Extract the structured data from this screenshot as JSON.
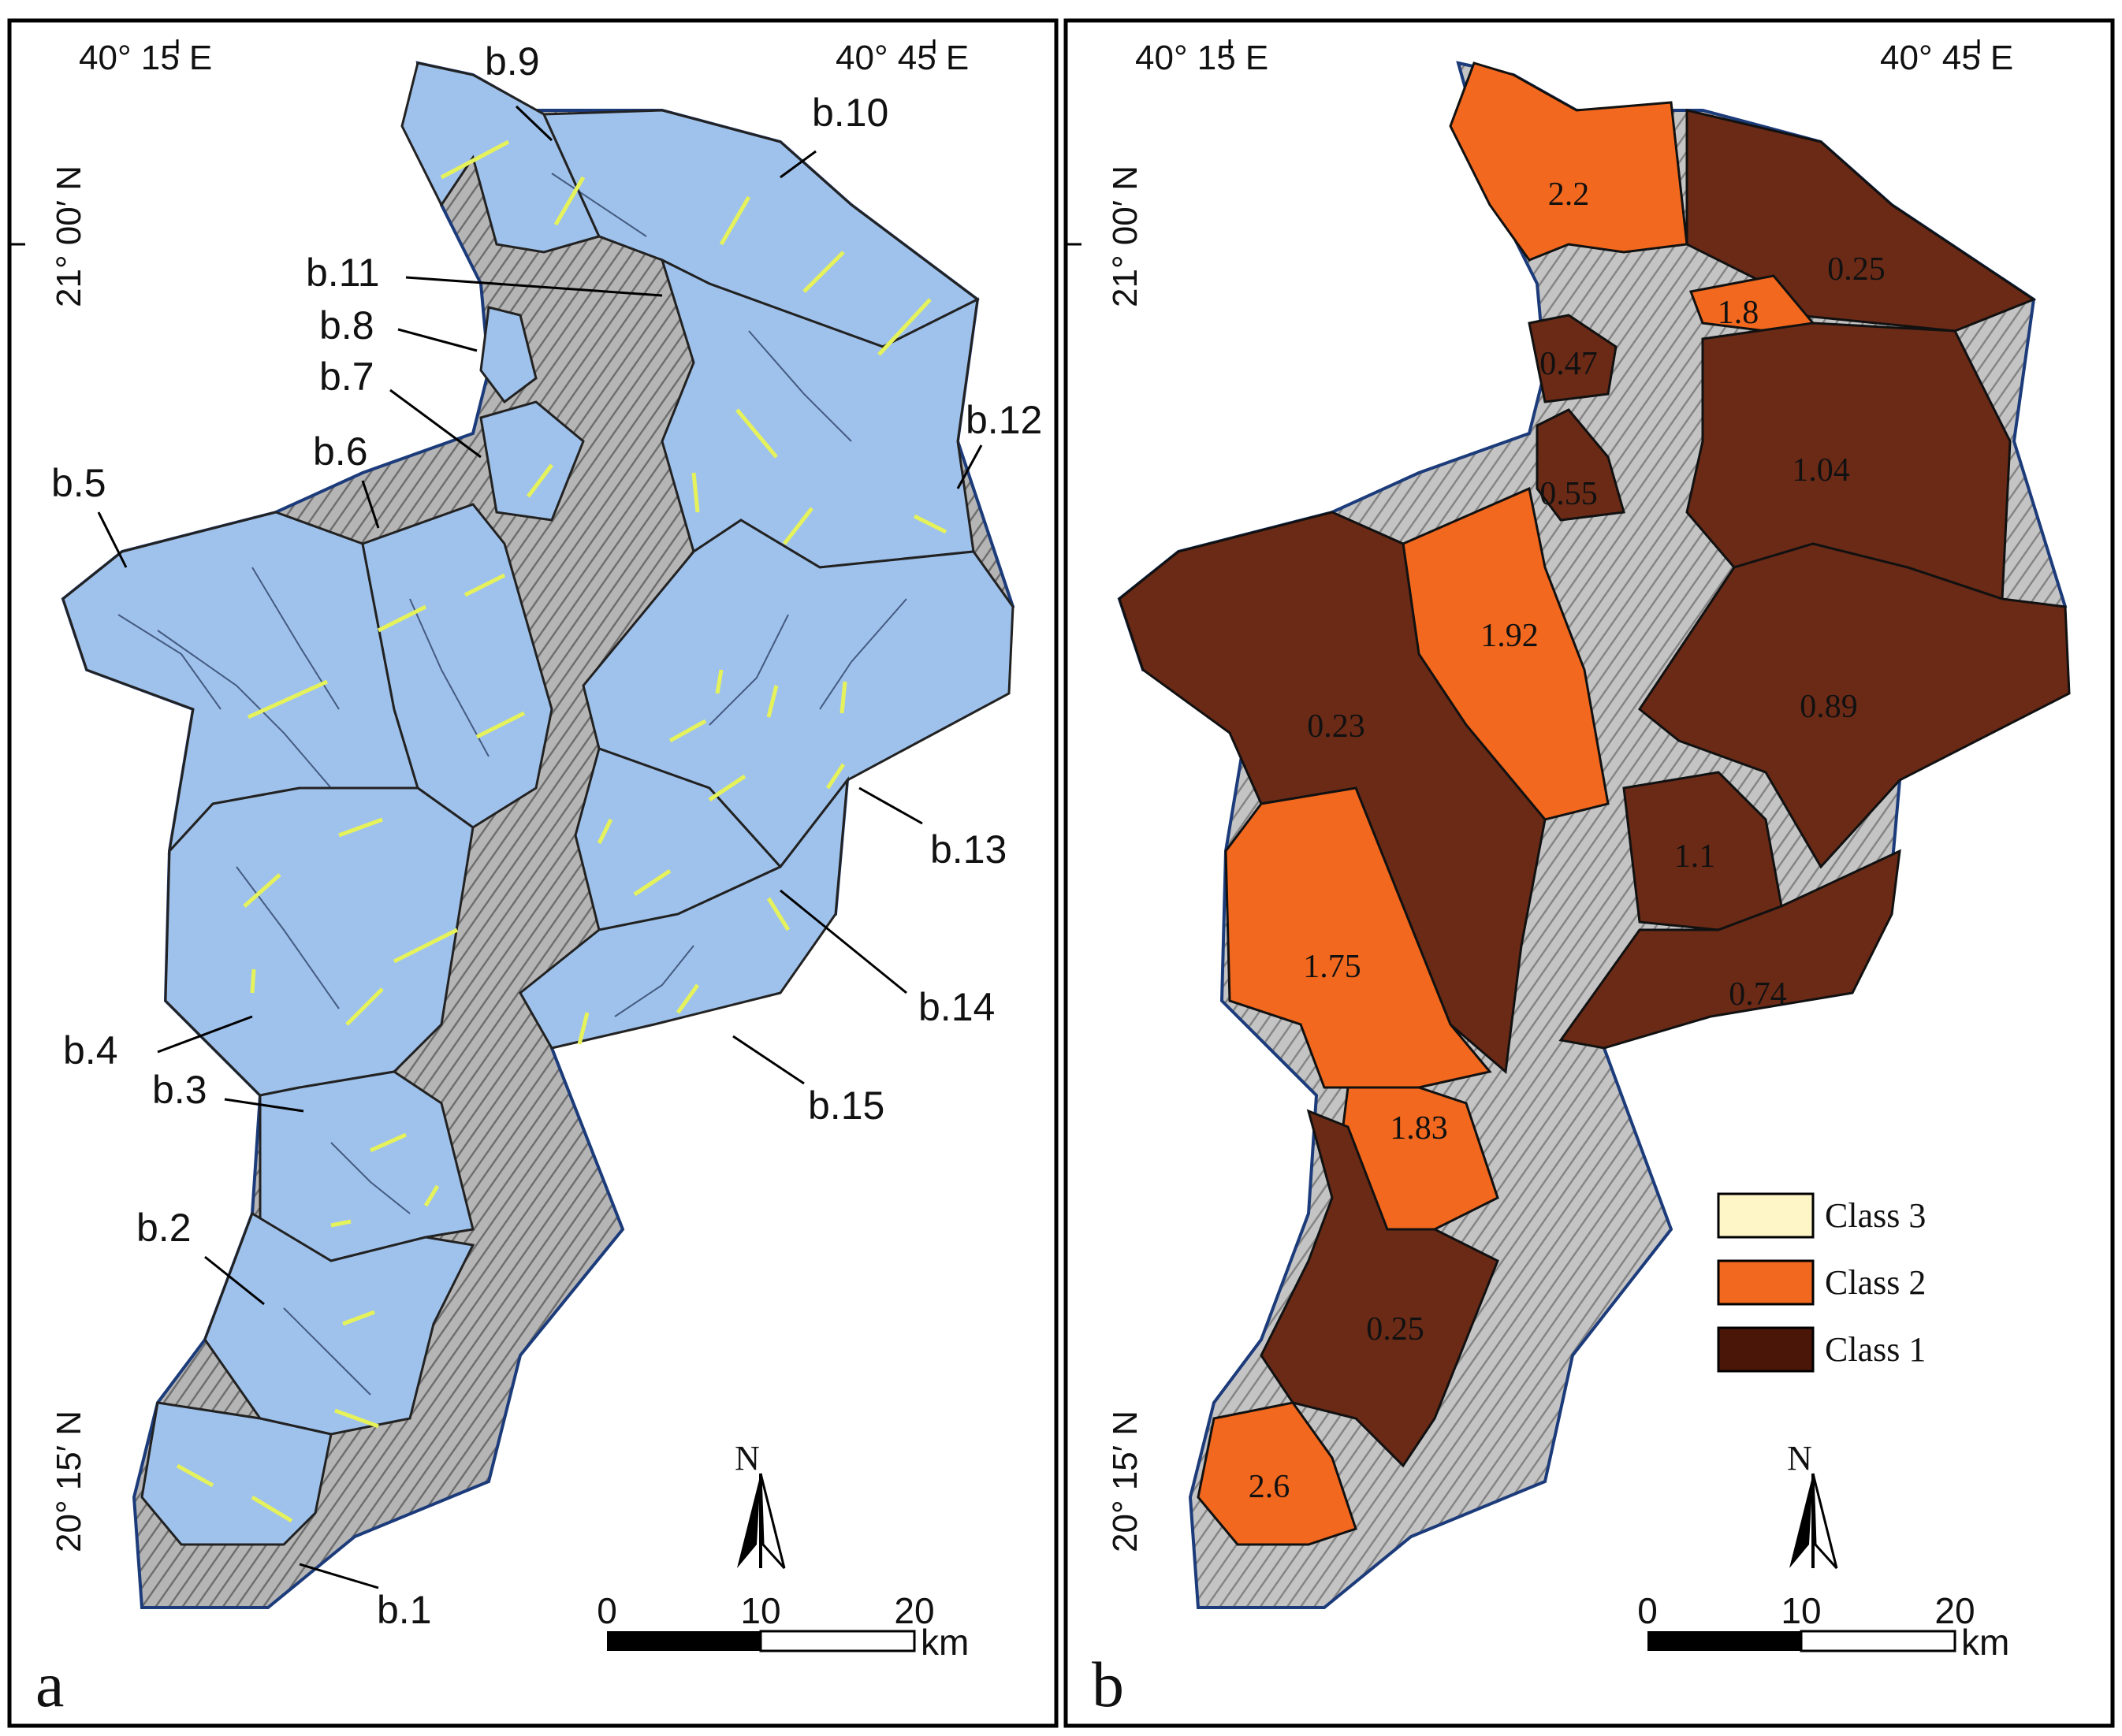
{
  "panels": [
    {
      "letter": "a",
      "lon_left": "40° 15 E",
      "lon_right": "40° 45 E",
      "lat_top": "21° 00′ N",
      "lat_bottom": "20° 15′ N",
      "basin_color": "#9fc2ec",
      "hill_color": "#9a9a9a",
      "lineament_color": "#e6f25a",
      "basin_labels": [
        "b.1",
        "b.2",
        "b.3",
        "b.4",
        "b.5",
        "b.6",
        "b.7",
        "b.8",
        "b.9",
        "b.10",
        "b.11",
        "b.12",
        "b.13",
        "b.14",
        "b.15"
      ]
    },
    {
      "letter": "b",
      "lon_left": "40° 15 E",
      "lon_right": "40° 45 E",
      "lat_top": "21° 00′ N",
      "lat_bottom": "20° 15′ N",
      "values": [
        "2.2",
        "1.8",
        "0.25",
        "0.47",
        "0.55",
        "1.04",
        "1.92",
        "0.23",
        "0.89",
        "1.1",
        "1.75",
        "0.74",
        "1.83",
        "0.25",
        "2.6"
      ],
      "legend": [
        {
          "label": "Class 3",
          "color": "#fff6c8"
        },
        {
          "label": "Class 2",
          "color": "#f2681e"
        },
        {
          "label": "Class 1",
          "color": "#6b2a16"
        }
      ]
    }
  ],
  "scalebar": {
    "ticks": [
      "0",
      "10",
      "20"
    ],
    "unit": "km"
  },
  "north": "N"
}
